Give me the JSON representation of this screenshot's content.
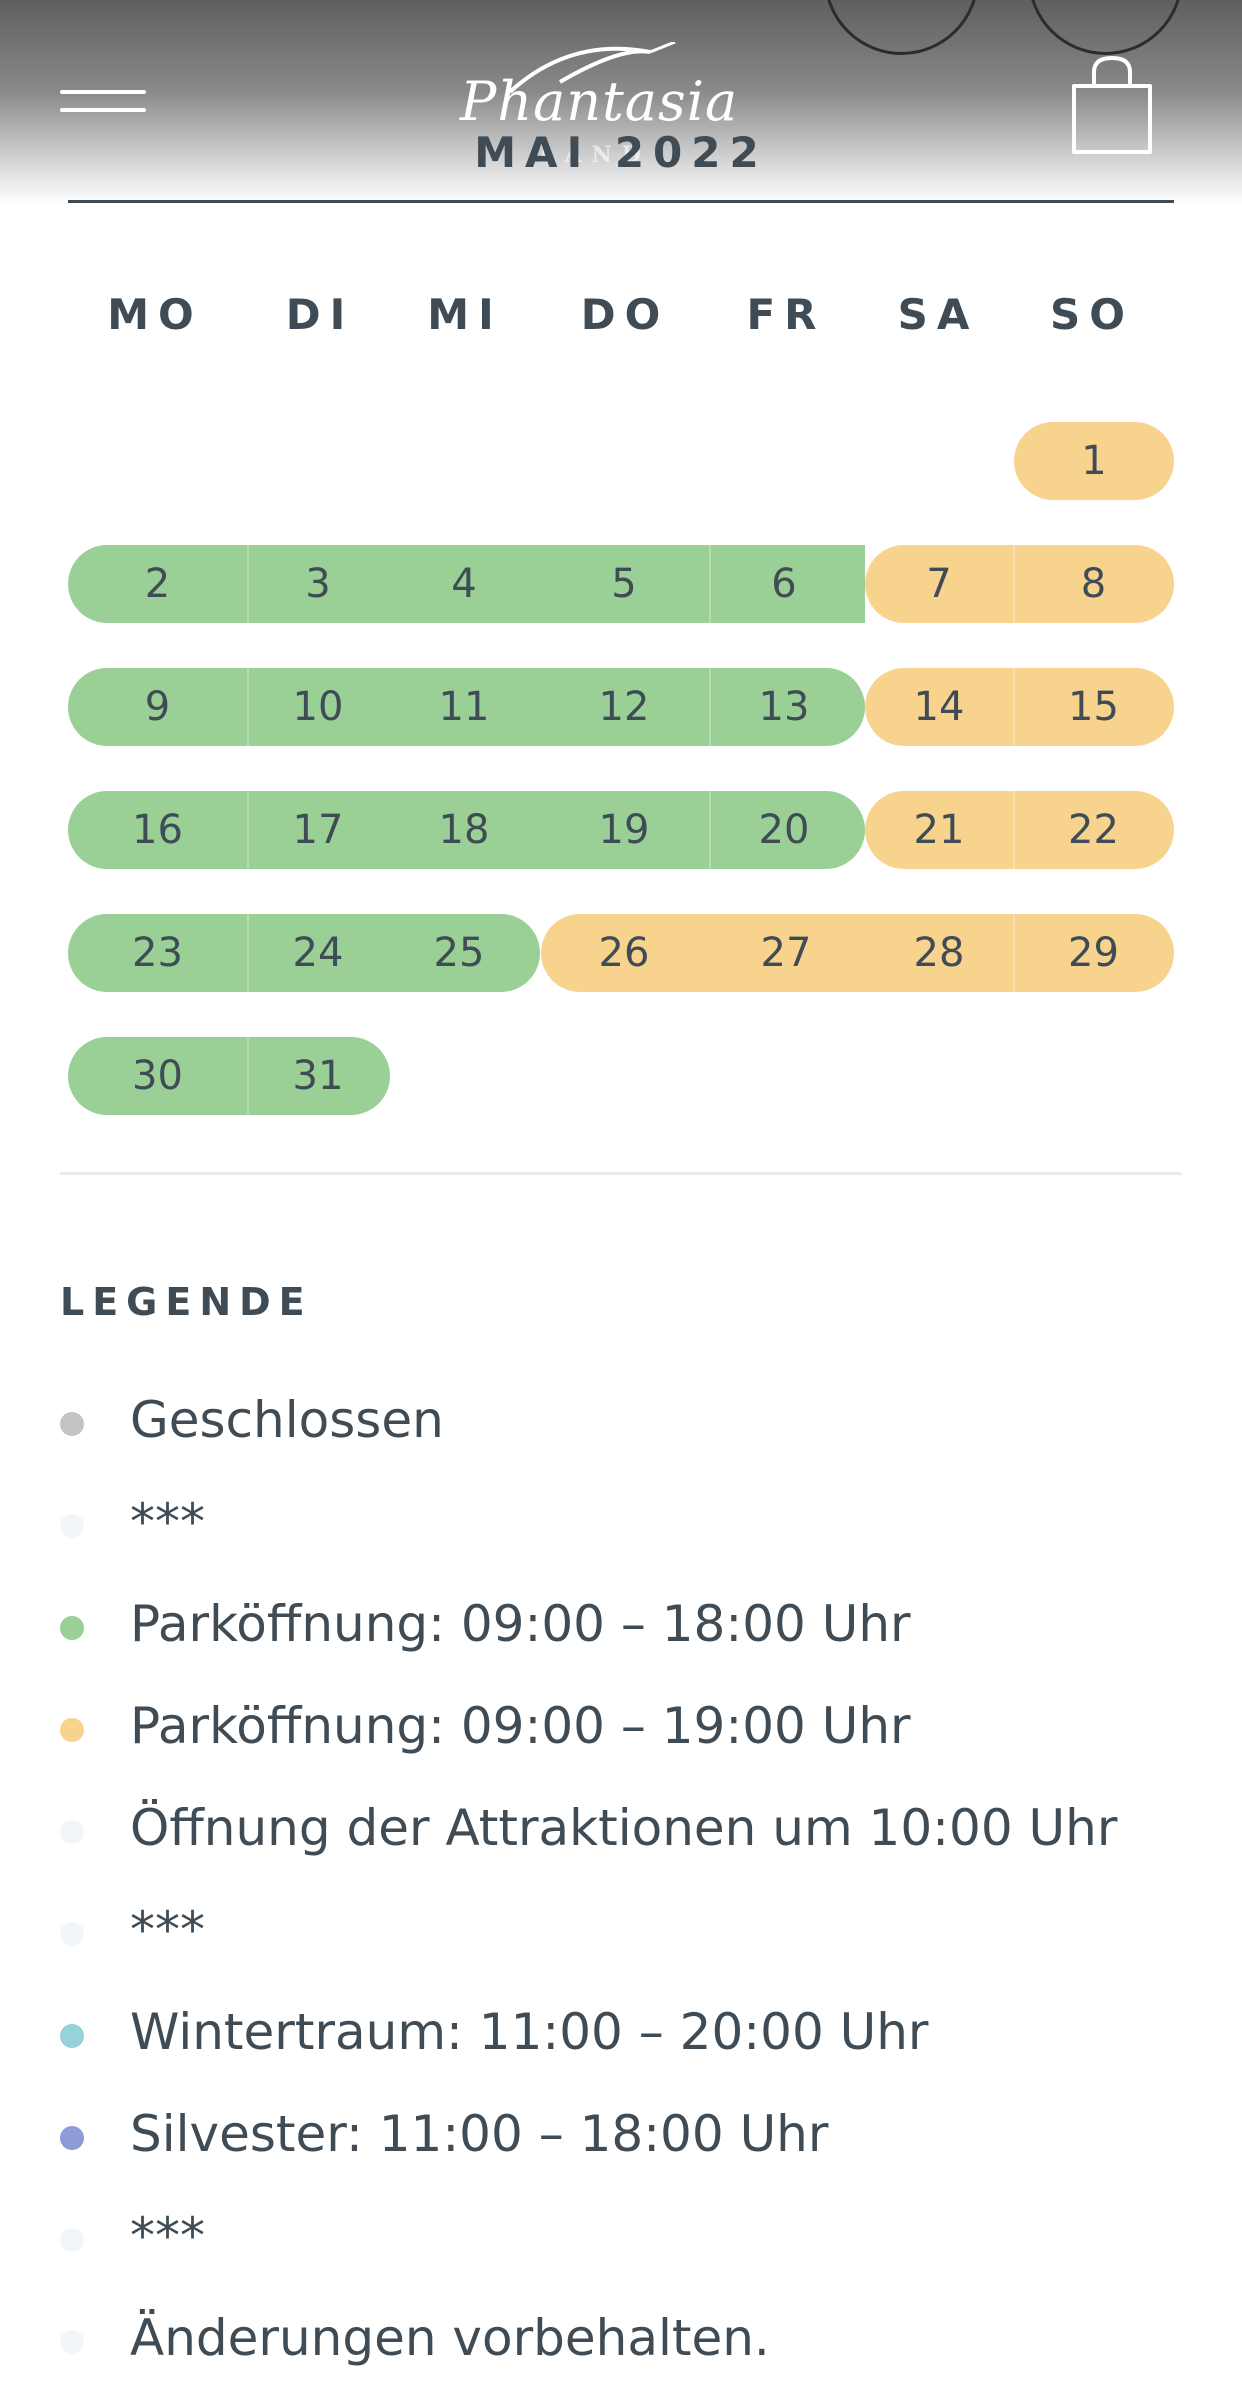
{
  "header": {
    "logo_text": "Phantasia",
    "logo_sub": "LAND",
    "month_title": "MAI 2022"
  },
  "calendar": {
    "weekdays": [
      "MO",
      "DI",
      "MI",
      "DO",
      "FR",
      "SA",
      "SO"
    ],
    "days": {
      "d1": "1",
      "d2": "2",
      "d3": "3",
      "d4": "4",
      "d5": "5",
      "d6": "6",
      "d7": "7",
      "d8": "8",
      "d9": "9",
      "d10": "10",
      "d11": "11",
      "d12": "12",
      "d13": "13",
      "d14": "14",
      "d15": "15",
      "d16": "16",
      "d17": "17",
      "d18": "18",
      "d19": "19",
      "d20": "20",
      "d21": "21",
      "d22": "22",
      "d23": "23",
      "d24": "24",
      "d25": "25",
      "d26": "26",
      "d27": "27",
      "d28": "28",
      "d29": "29",
      "d30": "30",
      "d31": "31"
    },
    "colors": {
      "green": "#9ad095",
      "yellow": "#f7d38d"
    }
  },
  "legend": {
    "title": "LEGENDE",
    "items": [
      {
        "label": "Geschlossen",
        "color": "#c4c4c4"
      },
      {
        "label": "***",
        "color": "#f2f6f8"
      },
      {
        "label": "Parköffnung: 09:00 – 18:00 Uhr",
        "color": "#9ad095"
      },
      {
        "label": "Parköffnung: 09:00 – 19:00 Uhr",
        "color": "#f7d38d"
      },
      {
        "label": "Öffnung der Attraktionen um 10:00 Uhr",
        "color": "#f2f6f8"
      },
      {
        "label": "***",
        "color": "#f2f6f8"
      },
      {
        "label": "Wintertraum: 11:00 – 20:00 Uhr",
        "color": "#96d2d9"
      },
      {
        "label": "Silvester: 11:00 – 18:00 Uhr",
        "color": "#8e9cd6"
      },
      {
        "label": "***",
        "color": "#f2f6f8"
      },
      {
        "label": "Änderungen vorbehalten.",
        "color": "#f2f6f8"
      }
    ]
  }
}
